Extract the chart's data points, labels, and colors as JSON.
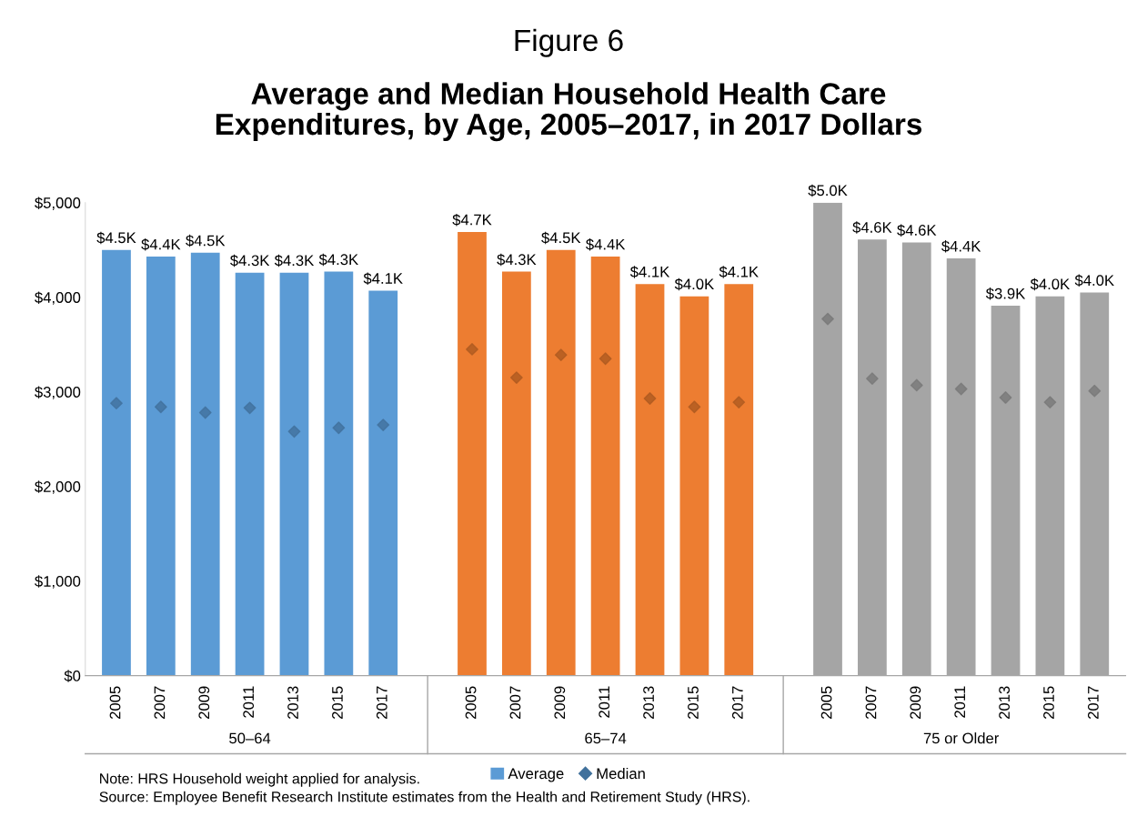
{
  "chart_data": {
    "type": "bar",
    "title": "Figure 6",
    "subtitle": "Average and Median Household Health Care\nExpenditures, by Age, 2005–2017, in 2017 Dollars",
    "categories": [
      "2005",
      "2007",
      "2009",
      "2011",
      "2013",
      "2015",
      "2017",
      null,
      "2005",
      "2007",
      "2009",
      "2011",
      "2013",
      "2015",
      "2017",
      null,
      "2005",
      "2007",
      "2009",
      "2011",
      "2013",
      "2015",
      "2017"
    ],
    "series": [
      {
        "name": "Average",
        "color": "#5b9bd5",
        "colors": [
          "#5b9bd5",
          "#5b9bd5",
          "#5b9bd5",
          "#5b9bd5",
          "#5b9bd5",
          "#5b9bd5",
          "#5b9bd5",
          null,
          "#ed7d31",
          "#ed7d31",
          "#ed7d31",
          "#ed7d31",
          "#ed7d31",
          "#ed7d31",
          "#ed7d31",
          null,
          "#a5a5a5",
          "#a5a5a5",
          "#a5a5a5",
          "#a5a5a5",
          "#a5a5a5",
          "#a5a5a5",
          "#a5a5a5"
        ],
        "values": [
          4500,
          4430,
          4470,
          4260,
          4260,
          4270,
          4070,
          null,
          4690,
          4270,
          4500,
          4430,
          4140,
          4010,
          4140,
          null,
          5000,
          4610,
          4580,
          4410,
          3910,
          4010,
          4050
        ],
        "value_labels": [
          "$4.5K",
          "$4.4K",
          "$4.5K",
          "$4.3K",
          "$4.3K",
          "$4.3K",
          "$4.1K",
          null,
          "$4.7K",
          "$4.3K",
          "$4.5K",
          "$4.4K",
          "$4.1K",
          "$4.0K",
          "$4.1K",
          null,
          "$5.0K",
          "$4.6K",
          "$4.6K",
          "$4.4K",
          "$3.9K",
          "$4.0K",
          "$4.0K"
        ]
      },
      {
        "name": "Median",
        "type": "scatter",
        "marker": "diamond",
        "color": "#41719c",
        "colors": [
          "#41719c",
          "#41719c",
          "#41719c",
          "#41719c",
          "#41719c",
          "#41719c",
          "#41719c",
          null,
          "#ae5a21",
          "#ae5a21",
          "#ae5a21",
          "#ae5a21",
          "#ae5a21",
          "#ae5a21",
          "#ae5a21",
          null,
          "#787878",
          "#787878",
          "#787878",
          "#787878",
          "#787878",
          "#787878",
          "#787878"
        ],
        "values": [
          2880,
          2840,
          2780,
          2830,
          2580,
          2620,
          2650,
          null,
          3450,
          3150,
          3390,
          3350,
          2930,
          2840,
          2890,
          null,
          3770,
          3140,
          3070,
          3030,
          2940,
          2890,
          3010
        ]
      }
    ],
    "ylim": [
      0,
      5000
    ],
    "yticks": [
      {
        "value": 0,
        "label": "$0"
      },
      {
        "value": 1000,
        "label": "$1,000"
      },
      {
        "value": 2000,
        "label": "$2,000"
      },
      {
        "value": 3000,
        "label": "$3,000"
      },
      {
        "value": 4000,
        "label": "$4,000"
      },
      {
        "value": 5000,
        "label": "$5,000"
      }
    ],
    "grid": false,
    "legend": "bottom",
    "annotations": [
      "50–64",
      "65–74",
      "75 or Older",
      "Note: HRS Household weight applied for analysis.",
      "Source: Employee Benefit Research Institute estimates from the Health and Retirement Study (HRS)."
    ]
  }
}
